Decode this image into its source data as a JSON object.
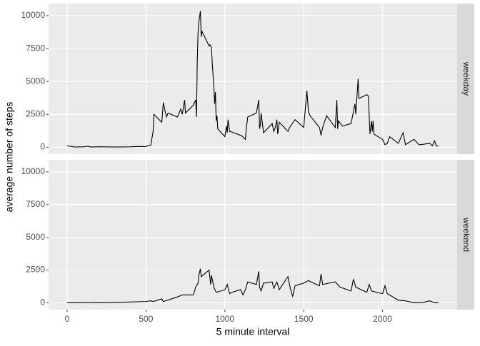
{
  "chart_data": {
    "type": "line",
    "x_label": "5 minute interval",
    "y_label": "average number of steps",
    "xlim": [
      -117.75,
      2472.75
    ],
    "xticks": [
      0,
      500,
      1000,
      1500,
      2000
    ],
    "ylim": [
      -520,
      10920
    ],
    "yticks": [
      0,
      2500,
      5000,
      7500,
      10000
    ],
    "grid": true,
    "series": [
      {
        "name": "weekday",
        "color": "#000000",
        "x": [
          0,
          50,
          100,
          130,
          150,
          200,
          300,
          400,
          450,
          500,
          515,
          530,
          545,
          550,
          600,
          610,
          620,
          630,
          640,
          700,
          720,
          730,
          745,
          750,
          800,
          815,
          820,
          825,
          830,
          835,
          845,
          850,
          855,
          900,
          905,
          915,
          920,
          930,
          935,
          940,
          945,
          950,
          955,
          1000,
          1010,
          1015,
          1020,
          1030,
          1035,
          1100,
          1105,
          1130,
          1135,
          1145,
          1200,
          1215,
          1220,
          1225,
          1230,
          1245,
          1300,
          1310,
          1320,
          1330,
          1335,
          1345,
          1400,
          1410,
          1445,
          1500,
          1520,
          1530,
          1540,
          1600,
          1610,
          1620,
          1645,
          1700,
          1710,
          1715,
          1720,
          1745,
          1800,
          1825,
          1830,
          1845,
          1850,
          1900,
          1910,
          1920,
          1930,
          1935,
          1940,
          1945,
          2000,
          2015,
          2030,
          2045,
          2100,
          2130,
          2145,
          2200,
          2230,
          2245,
          2300,
          2315,
          2330,
          2340,
          2355
        ],
        "values": [
          110,
          20,
          30,
          80,
          20,
          40,
          20,
          30,
          60,
          50,
          150,
          150,
          1200,
          2500,
          1900,
          3400,
          2800,
          2300,
          2600,
          2300,
          2900,
          2500,
          3600,
          2600,
          3200,
          3600,
          2300,
          6500,
          8700,
          9500,
          10350,
          8400,
          8800,
          7700,
          7800,
          7600,
          6400,
          4600,
          3300,
          4200,
          2000,
          2400,
          1400,
          800,
          1600,
          1100,
          2100,
          1200,
          1200,
          900,
          900,
          600,
          1300,
          2300,
          2600,
          3600,
          1400,
          1700,
          2600,
          1100,
          1800,
          1200,
          1500,
          2100,
          1000,
          1900,
          1200,
          1500,
          2100,
          1500,
          4300,
          2700,
          2400,
          1500,
          900,
          1500,
          2400,
          1500,
          3600,
          1400,
          2000,
          1600,
          1800,
          3300,
          2500,
          5200,
          3700,
          4000,
          3900,
          1000,
          2000,
          1200,
          2000,
          1000,
          600,
          200,
          300,
          800,
          300,
          1100,
          200,
          600,
          200,
          200,
          300,
          100,
          500,
          100,
          100
        ]
      },
      {
        "name": "weekend",
        "color": "#000000",
        "x": [
          0,
          100,
          200,
          300,
          400,
          500,
          530,
          545,
          600,
          610,
          700,
          730,
          800,
          815,
          830,
          835,
          845,
          850,
          900,
          910,
          915,
          930,
          945,
          1000,
          1015,
          1030,
          1045,
          1100,
          1115,
          1130,
          1145,
          1200,
          1215,
          1220,
          1230,
          1245,
          1300,
          1310,
          1330,
          1345,
          1400,
          1415,
          1430,
          1445,
          1500,
          1530,
          1545,
          1600,
          1610,
          1620,
          1700,
          1730,
          1800,
          1815,
          1830,
          1900,
          1915,
          1930,
          2000,
          2015,
          2030,
          2100,
          2145,
          2200,
          2245,
          2300,
          2330,
          2355
        ],
        "values": [
          0,
          10,
          0,
          20,
          60,
          100,
          150,
          100,
          300,
          100,
          450,
          600,
          600,
          1200,
          1500,
          2100,
          2600,
          2000,
          2500,
          1400,
          2100,
          1200,
          800,
          1000,
          1400,
          700,
          800,
          1000,
          600,
          1000,
          1600,
          1400,
          2400,
          1200,
          900,
          1500,
          1600,
          1100,
          1600,
          1000,
          2000,
          1100,
          500,
          1300,
          1500,
          1700,
          1600,
          1300,
          2200,
          1400,
          1600,
          1200,
          900,
          1800,
          1200,
          800,
          1400,
          900,
          700,
          1300,
          700,
          200,
          150,
          0,
          0,
          150,
          0,
          0
        ]
      }
    ]
  }
}
